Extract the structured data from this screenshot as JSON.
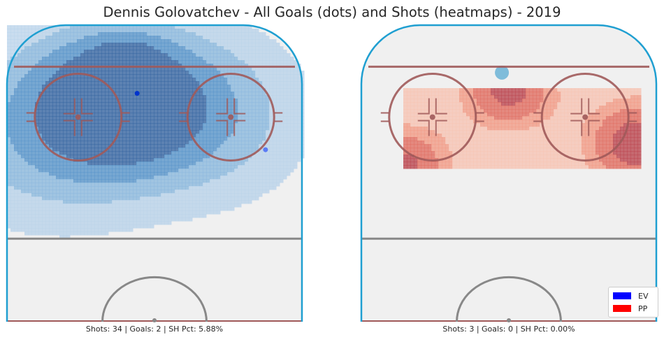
{
  "title": "Dennis Golovatchev - All Goals (dots) and Shots (heatmaps) - 2019",
  "colors": {
    "ice": "#f0f0f0",
    "boards": "#1f9fd1",
    "red_line": "#a05a5a",
    "faceoff_circle": "#a05a5a",
    "blue_line": "#888888",
    "ev": "#0000ff",
    "pp": "#ff0000"
  },
  "legend": {
    "placement": "lower-right",
    "items": [
      {
        "label": "EV",
        "color": "#0000ff"
      },
      {
        "label": "PP",
        "color": "#ff0000"
      }
    ]
  },
  "panels": [
    {
      "id": "ev",
      "caption": "Shots: 34 | Goals: 2 | SH Pct: 5.88%"
    },
    {
      "id": "pp",
      "caption": "Shots: 3 | Goals: 0 | SH Pct: 0.00%"
    }
  ],
  "chart_data": [
    {
      "type": "heatmap",
      "situation": "EV",
      "colormap": "blues",
      "title": "",
      "xlabel": "",
      "ylabel": "",
      "grid": false,
      "shots": 34,
      "goals_count": 2,
      "sh_pct": "5.88%",
      "density_levels": [
        0.15,
        0.35,
        0.55,
        0.8
      ],
      "density_peaks": [
        {
          "x": -10,
          "y": 75,
          "weight": 1.0,
          "spread": 15
        },
        {
          "x": -30,
          "y": 65,
          "weight": 0.55,
          "spread": 22
        },
        {
          "x": 15,
          "y": 70,
          "weight": 0.5,
          "spread": 20
        },
        {
          "x": -8,
          "y": 84,
          "weight": 0.6,
          "spread": 6
        }
      ],
      "goals": [
        {
          "x": -5,
          "y": 77,
          "color": "#0033cc"
        },
        {
          "x": 32,
          "y": 58,
          "color": "#5b7cf5"
        }
      ]
    },
    {
      "type": "heatmap",
      "situation": "PP",
      "colormap": "reds",
      "title": "",
      "xlabel": "",
      "ylabel": "",
      "grid": false,
      "shots": 3,
      "goals_count": 0,
      "sh_pct": "0.00%",
      "density_levels": [
        0.15,
        0.35,
        0.55,
        0.8
      ],
      "density_extent": {
        "x": [
          -30,
          38
        ],
        "y": [
          52,
          79
        ]
      },
      "density_peaks": [
        {
          "x": 0,
          "y": 78,
          "weight": 0.9,
          "spread": 10
        },
        {
          "x": 37,
          "y": 60,
          "weight": 1.0,
          "spread": 11
        },
        {
          "x": -30,
          "y": 53,
          "weight": 0.85,
          "spread": 10
        }
      ],
      "goals": [],
      "other_marks": [
        {
          "x": -2,
          "y": 84,
          "color": "#6bb3d6",
          "note": ""
        }
      ]
    }
  ]
}
